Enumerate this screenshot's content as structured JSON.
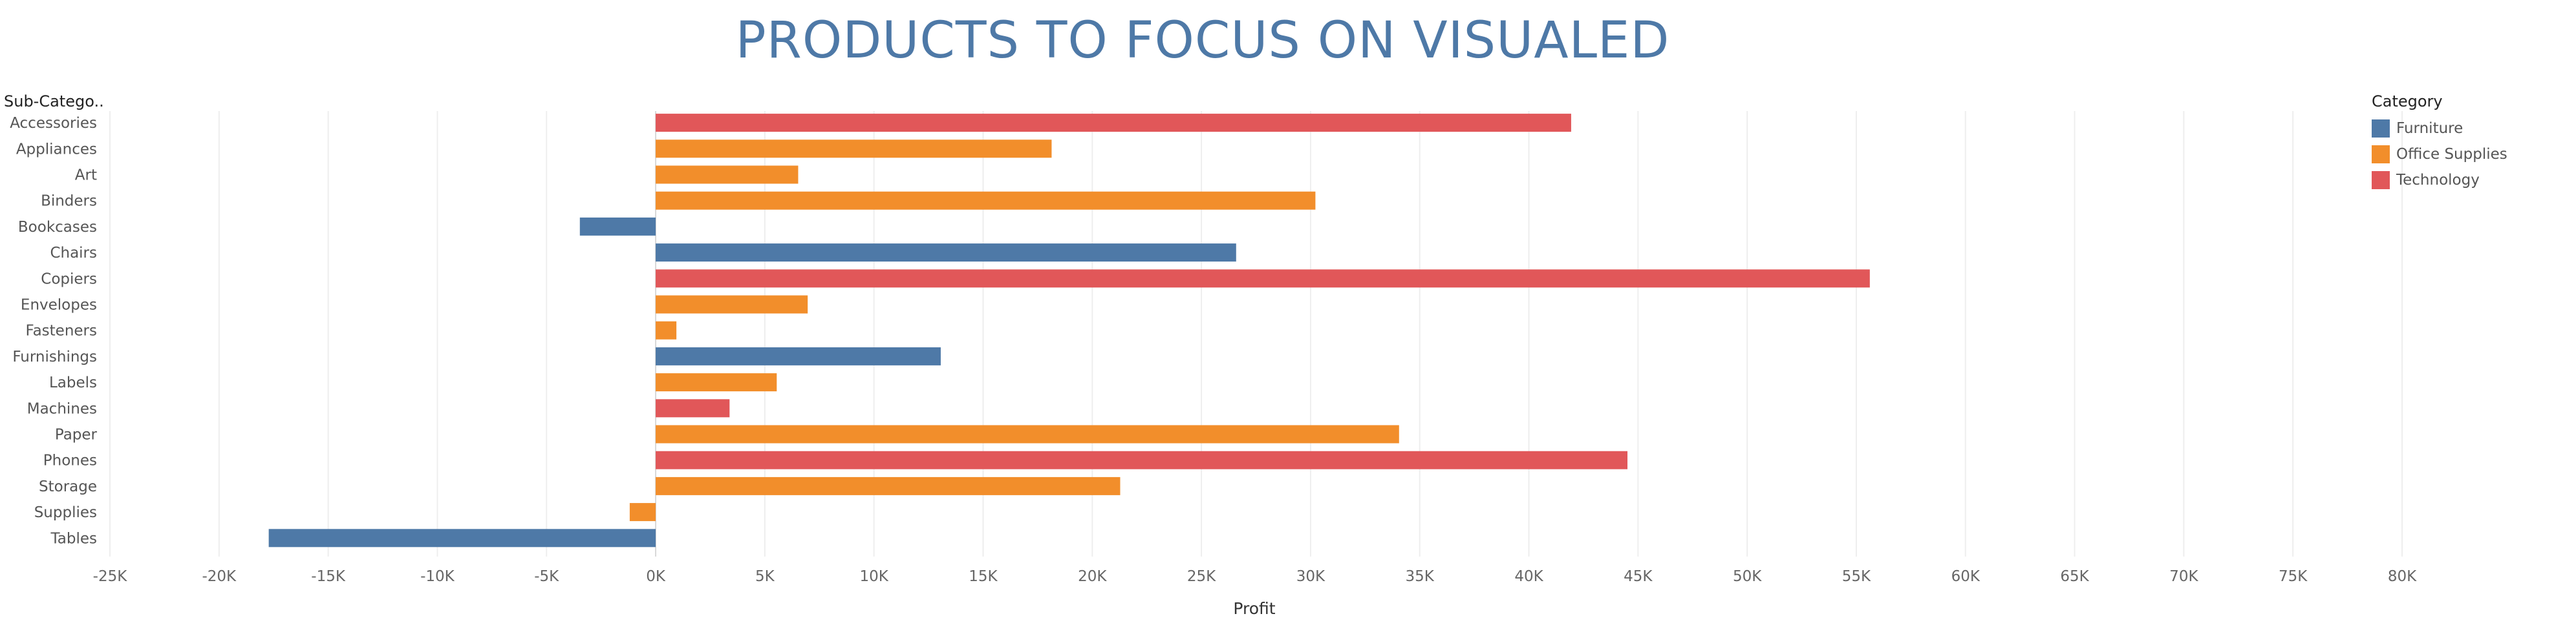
{
  "chart_data": {
    "type": "bar",
    "orientation": "horizontal",
    "title": "PRODUCTS TO FOCUS ON VISUALED",
    "row_header": "Sub-Catego..",
    "xlabel": "Profit",
    "ylabel": "",
    "xlim": [
      -25000,
      80000
    ],
    "xticks": [
      -25000,
      -20000,
      -15000,
      -10000,
      -5000,
      0,
      5000,
      10000,
      15000,
      20000,
      25000,
      30000,
      35000,
      40000,
      45000,
      50000,
      55000,
      60000,
      65000,
      70000,
      75000,
      80000
    ],
    "xtick_labels": [
      "-25K",
      "-20K",
      "-15K",
      "-10K",
      "-5K",
      "0K",
      "5K",
      "10K",
      "15K",
      "20K",
      "25K",
      "30K",
      "35K",
      "40K",
      "45K",
      "50K",
      "55K",
      "60K",
      "65K",
      "70K",
      "75K",
      "80K"
    ],
    "grid": true,
    "legend_position": "top-right",
    "legend_title": "Category",
    "legend": [
      {
        "name": "Furniture",
        "color": "#4e79a7"
      },
      {
        "name": "Office Supplies",
        "color": "#f28e2b"
      },
      {
        "name": "Technology",
        "color": "#e15759"
      }
    ],
    "categories": [
      "Accessories",
      "Appliances",
      "Art",
      "Binders",
      "Bookcases",
      "Chairs",
      "Copiers",
      "Envelopes",
      "Fasteners",
      "Furnishings",
      "Labels",
      "Machines",
      "Paper",
      "Phones",
      "Storage",
      "Supplies",
      "Tables"
    ],
    "values": [
      41937,
      18138,
      6528,
      30222,
      -3473,
      26590,
      55618,
      6964,
      950,
      13059,
      5546,
      3385,
      34054,
      44516,
      21279,
      -1189,
      -17725
    ],
    "colors": [
      "Technology",
      "Office Supplies",
      "Office Supplies",
      "Office Supplies",
      "Furniture",
      "Furniture",
      "Technology",
      "Office Supplies",
      "Office Supplies",
      "Furniture",
      "Office Supplies",
      "Technology",
      "Office Supplies",
      "Technology",
      "Office Supplies",
      "Office Supplies",
      "Furniture"
    ]
  }
}
